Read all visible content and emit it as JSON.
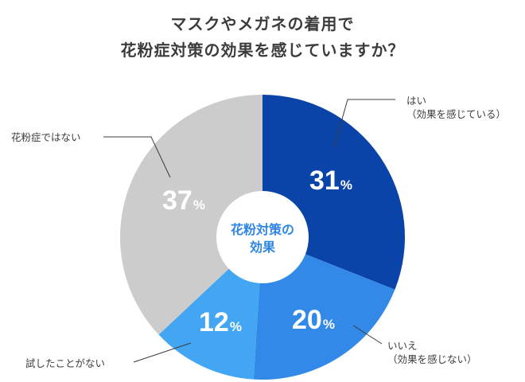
{
  "title": {
    "line1": "マスクやメガネの着用で",
    "line2": "花粉症対策の効果を感じていますか？"
  },
  "center_label": {
    "line1": "花粉対策の",
    "line2": "効果"
  },
  "percent_unit": "%",
  "slices": [
    {
      "key": "yes",
      "label_line1": "はい",
      "label_line2": "（効果を感じている）",
      "value": "31",
      "color": "#0a44a8"
    },
    {
      "key": "no",
      "label_line1": "いいえ",
      "label_line2": "（効果を感じない）",
      "value": "20",
      "color": "#3289e8"
    },
    {
      "key": "never_tried",
      "label_line1": "試したことがない",
      "label_line2": "",
      "value": "12",
      "color": "#42a6f2"
    },
    {
      "key": "no_hayfever",
      "label_line1": "花粉症ではない",
      "label_line2": "",
      "value": "37",
      "color": "#cccccc"
    }
  ],
  "chart_data": {
    "type": "pie",
    "title": "マスクやメガネの着用で花粉症対策の効果を感じていますか？",
    "center_label": "花粉対策の効果",
    "donut": true,
    "start_angle": "12 o'clock, clockwise",
    "categories": [
      "はい（効果を感じている）",
      "いいえ（効果を感じない）",
      "試したことがない",
      "花粉症ではない"
    ],
    "values": [
      31,
      20,
      12,
      37
    ],
    "unit": "%",
    "colors": [
      "#0a44a8",
      "#3289e8",
      "#42a6f2",
      "#cccccc"
    ],
    "legend": "callout labels with leader lines"
  }
}
